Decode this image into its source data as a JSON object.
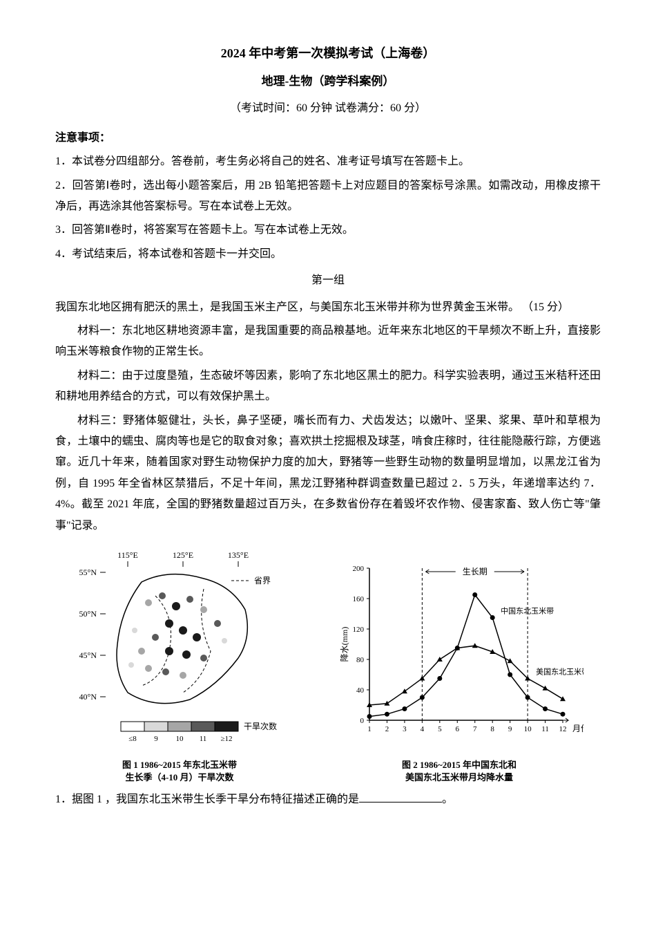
{
  "header": {
    "title1": "2024 年中考第一次模拟考试（上海卷）",
    "title2": "地理-生物（跨学科案例）",
    "subtitle": "（考试时间：60 分钟  试卷满分：60 分）"
  },
  "notice_header": "注意事项：",
  "instructions": [
    "1．本试卷分四组部分。答卷前，考生务必将自己的姓名、准考证号填写在答题卡上。",
    "2．回答第Ⅰ卷时，选出每小题答案后，用 2B 铅笔把答题卡上对应题目的答案标号涂黑。如需改动，用橡皮擦干净后，再选涂其他答案标号。写在本试卷上无效。",
    "3．回答第Ⅱ卷时，将答案写在答题卡上。写在本试卷上无效。",
    "4．考试结束后，将本试卷和答题卡一并交回。"
  ],
  "group_title": "第一组",
  "intro": "我国东北地区拥有肥沃的黑土，是我国玉米主产区，与美国东北玉米带并称为世界黄金玉米带。 （15 分）",
  "materials": [
    "材料一：东北地区耕地资源丰富，是我国重要的商品粮基地。近年来东北地区的干旱频次不断上升，直接影响玉米等粮食作物的正常生长。",
    "材料二：由于过度垦殖，生态破坏等因素，影响了东北地区黑土的肥力。科学实验表明，通过玉米秸秆还田和耕地用养结合的方式，可以有效保护黑土。",
    "材料三：野猪体躯健壮，头长，鼻子坚硬，嘴长而有力、犬齿发达；以嫩叶、坚果、浆果、草叶和草根为食，土壤中的蠕虫、腐肉等也是它的取食对象；喜欢拱土挖掘根及球茎，啃食庄稼时，往往能隐蔽行踪，方便逃窜。近几十年来，随着国家对野生动物保护力度的加大，野猪等一些野生动物的数量明显增加，以黑龙江省为例，自 1995 年全省林区禁猎后，不足十年间，黑龙江野猪种群调查数量已超过 2．5 万头，年递增率达约 7．4%。截至  2021 年底，全国的野猪数量超过百万头，在多数省份存在着毁坏农作物、侵害家畜、致人伤亡等\"肇事\"记录。"
  ],
  "figure1": {
    "caption_line1": "图 1 1986~2015 年东北玉米带",
    "caption_line2": "生长季（4-10 月）干旱次数",
    "longitudes": [
      "115°E",
      "125°E",
      "135°E"
    ],
    "latitudes": [
      "55°N",
      "50°N",
      "45°N",
      "40°N"
    ],
    "legend_province": "省界",
    "legend_title": "干旱次数",
    "legend_items": [
      "≤8",
      "9",
      "10",
      "11",
      "≥12"
    ],
    "legend_colors": [
      "#ffffff",
      "#d9d9d9",
      "#a6a6a6",
      "#595959",
      "#1a1a1a"
    ],
    "outline_color": "#000000",
    "grid_color": "#666666"
  },
  "figure2": {
    "caption_line1": "图 2 1986~2015 年中国东北和",
    "caption_line2": "美国东北玉米带月均降水量",
    "ylabel": "降水(mm)",
    "xlabel": "月份",
    "growth_label": "生长期",
    "series1_label": "中国东北玉米带",
    "series2_label": "美国东北玉米带",
    "months": [
      1,
      2,
      3,
      4,
      5,
      6,
      7,
      8,
      9,
      10,
      11,
      12
    ],
    "china_values": [
      5,
      8,
      15,
      30,
      55,
      95,
      165,
      135,
      60,
      30,
      15,
      8
    ],
    "usa_values": [
      20,
      22,
      38,
      55,
      80,
      95,
      98,
      90,
      78,
      55,
      42,
      28
    ],
    "ylim": [
      0,
      200
    ],
    "yticks": [
      0,
      40,
      80,
      120,
      160,
      200
    ],
    "growth_start": 4,
    "growth_end": 10,
    "line_color": "#000000",
    "grid_color": "#cccccc",
    "china_marker": "circle",
    "usa_marker": "triangle",
    "background_color": "#ffffff"
  },
  "question1": {
    "prefix": "1．据图  1 ，我国东北玉米带生长季干旱分布特征描述正确的是",
    "suffix": "。"
  }
}
